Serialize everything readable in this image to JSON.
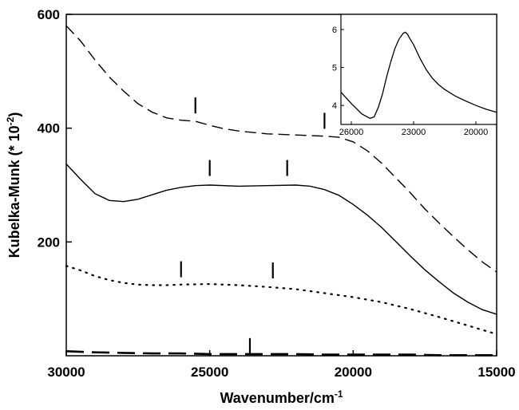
{
  "chart_data": {
    "type": "line",
    "xlabel": "Wavenumber/cm",
    "xlabel_sup": "-1",
    "ylabel": "Kubelka-Munk (* 10",
    "ylabel_sup": "-2",
    "ylabel_end": ")",
    "xlim": [
      30000,
      15000
    ],
    "ylim": [
      0,
      600
    ],
    "x_ticks": [
      30000,
      25000,
      20000,
      15000
    ],
    "x_tick_labels": [
      "30000",
      "25000",
      "20000",
      "15000"
    ],
    "y_ticks": [
      200,
      400,
      600
    ],
    "y_tick_labels": [
      "200",
      "400",
      "600"
    ],
    "series": [
      {
        "style": "dashed",
        "x": [
          30000,
          29500,
          29000,
          28500,
          28000,
          27500,
          27000,
          26500,
          26000,
          25500,
          25000,
          24500,
          24000,
          23000,
          22000,
          21000,
          20500,
          20000,
          19500,
          19000,
          18500,
          18000,
          17500,
          17000,
          16500,
          16000,
          15500,
          15000
        ],
        "y": [
          580,
          553,
          520,
          490,
          465,
          443,
          428,
          418,
          414,
          412,
          405,
          399,
          395,
          390,
          388,
          386,
          384,
          376,
          360,
          338,
          312,
          286,
          258,
          233,
          209,
          186,
          165,
          147
        ]
      },
      {
        "style": "solid",
        "x": [
          30000,
          29500,
          29000,
          28500,
          28000,
          27500,
          27000,
          26500,
          26000,
          25500,
          25000,
          24000,
          23000,
          22000,
          21500,
          21000,
          20500,
          20000,
          19500,
          19000,
          18500,
          18000,
          17500,
          17000,
          16500,
          16000,
          15500,
          15000
        ],
        "y": [
          337,
          310,
          285,
          273,
          271,
          275,
          283,
          291,
          296,
          299,
          300,
          298,
          299,
          300,
          298,
          292,
          282,
          266,
          247,
          225,
          200,
          175,
          151,
          130,
          110,
          94,
          81,
          73
        ]
      },
      {
        "style": "dotted",
        "x": [
          30000,
          29500,
          29000,
          28500,
          28000,
          27500,
          27000,
          26500,
          26000,
          25000,
          24000,
          23000,
          22000,
          21000,
          20000,
          19000,
          18000,
          17000,
          16000,
          15000
        ],
        "y": [
          158,
          150,
          140,
          133,
          128,
          125,
          124,
          124,
          125,
          126,
          124,
          121,
          117,
          110,
          103,
          94,
          82,
          68,
          53,
          38
        ]
      },
      {
        "style": "long-dash",
        "x": [
          30000,
          29000,
          28000,
          27000,
          26000,
          25000,
          24000,
          23000,
          22000,
          21000,
          20000,
          19000,
          18000,
          17000,
          16000,
          15000
        ],
        "y": [
          8,
          6,
          5,
          4,
          4,
          3,
          3,
          3,
          3,
          2,
          2,
          2,
          2,
          1,
          1,
          1
        ]
      }
    ],
    "markers": [
      {
        "x": 25500,
        "y": 440
      },
      {
        "x": 21000,
        "y": 413
      },
      {
        "x": 25000,
        "y": 330
      },
      {
        "x": 22300,
        "y": 330
      },
      {
        "x": 26000,
        "y": 152
      },
      {
        "x": 22800,
        "y": 150
      },
      {
        "x": 23600,
        "y": 17
      }
    ],
    "inset": {
      "type": "line",
      "xlim": [
        26500,
        19000
      ],
      "ylim": [
        3.5,
        6.4
      ],
      "x_ticks": [
        26000,
        23000,
        20000
      ],
      "x_tick_labels": [
        "26000",
        "23000",
        "20000"
      ],
      "y_ticks": [
        4,
        5,
        6
      ],
      "y_tick_labels": [
        "4",
        "5",
        "6"
      ],
      "series": [
        {
          "style": "solid",
          "x": [
            26500,
            26000,
            25500,
            25100,
            24900,
            24700,
            24500,
            24300,
            24100,
            23900,
            23700,
            23500,
            23400,
            23300,
            23200,
            23000,
            22700,
            22400,
            22100,
            21800,
            21500,
            21000,
            20500,
            20000,
            19500,
            19000
          ],
          "y": [
            4.35,
            4.05,
            3.78,
            3.66,
            3.7,
            3.95,
            4.3,
            4.75,
            5.15,
            5.5,
            5.75,
            5.9,
            5.93,
            5.88,
            5.78,
            5.6,
            5.25,
            4.95,
            4.72,
            4.55,
            4.42,
            4.25,
            4.12,
            4.0,
            3.9,
            3.82
          ]
        }
      ]
    }
  }
}
